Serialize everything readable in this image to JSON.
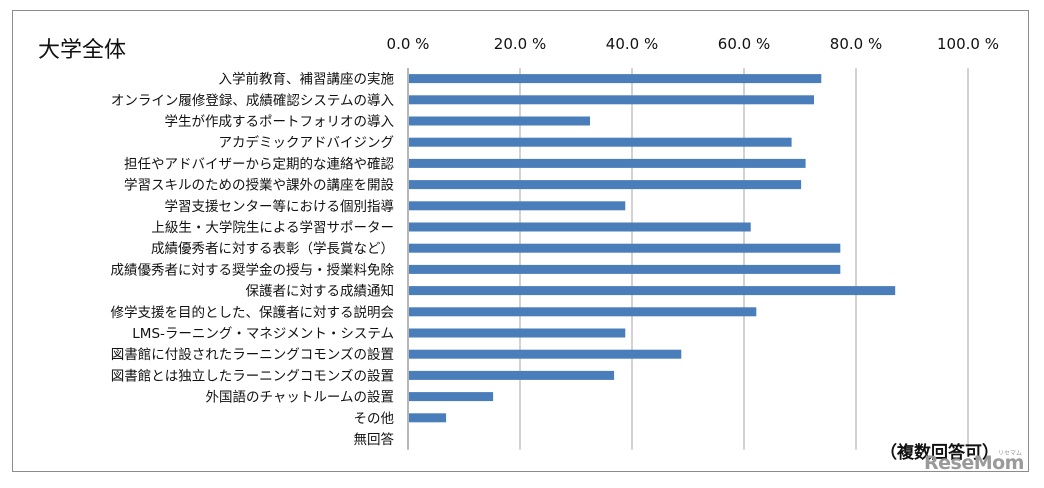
{
  "chart_data": {
    "type": "bar",
    "orientation": "horizontal",
    "title": "大学全体",
    "note": "（複数回答可）",
    "xlim": [
      0,
      100
    ],
    "xticks": [
      "0.0 %",
      "20.0 %",
      "40.0 %",
      "60.0 %",
      "80.0 %",
      "100.0 %"
    ],
    "xtick_values": [
      0,
      20,
      40,
      60,
      80,
      100
    ],
    "grid": "vertical",
    "legend": "none",
    "bar_color": "#4a7ebb",
    "categories": [
      "入学前教育、補習講座の実施",
      "オンライン履修登録、成績確認システムの導入",
      "学生が作成するポートフォリオの導入",
      "アカデミックアドバイジング",
      "担任やアドバイザーから定期的な連絡や確認",
      "学習スキルのための授業や課外の講座を開設",
      "学習支援センター等における個別指導",
      "上級生・大学院生による学習サポーター",
      "成績優秀者に対する表彰（学長賞など）",
      "成績優秀者に対する奨学金の授与・授業料免除",
      "保護者に対する成績通知",
      "修学支援を目的とした、保護者に対する説明会",
      "LMS-ラーニング・マネジメント・システム",
      "図書館に付設されたラーニングコモンズの設置",
      "図書館とは独立したラーニングコモンズの設置",
      "外国語のチャットルームの設置",
      "その他",
      "無回答"
    ],
    "values": [
      73.8,
      72.5,
      32.5,
      68.5,
      71.0,
      70.2,
      38.8,
      61.2,
      77.2,
      77.2,
      87.0,
      62.2,
      38.8,
      48.8,
      36.8,
      15.2,
      6.8,
      0
    ]
  },
  "watermark": {
    "brand": "ReseMom",
    "small": "リセマム"
  }
}
